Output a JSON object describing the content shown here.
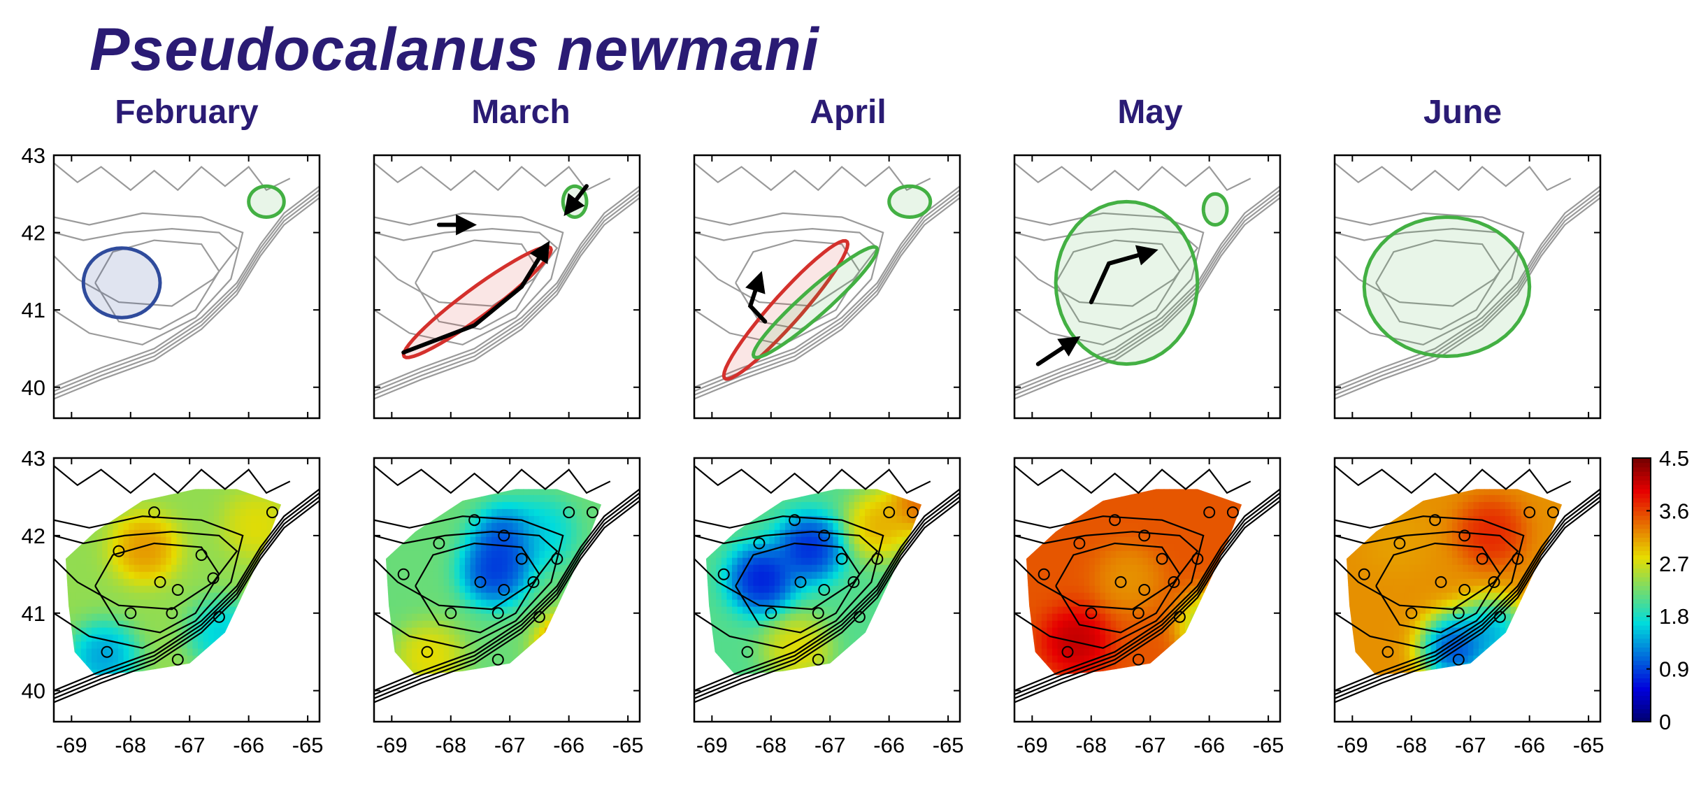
{
  "figure": {
    "title": "Pseudocalanus newmani",
    "panel_titles": [
      "February",
      "March",
      "April",
      "May",
      "June"
    ]
  },
  "colors": {
    "title": "#2a1b74",
    "bathymetry_gray": "#9a9a9a",
    "bathymetry_black": "#000000",
    "winter_patch": "#2f4b9c",
    "spring_patch": "#d4302c",
    "summer_patch": "#43b043",
    "arrow": "#000000"
  },
  "chart_data": {
    "type": "heatmap",
    "title": "Pseudocalanus newmani",
    "xlabel": "",
    "ylabel": "",
    "x_ticks": [
      -69,
      -68,
      -67,
      -66,
      -65
    ],
    "y_ticks": [
      40,
      41,
      42,
      43
    ],
    "xlim": [
      -69.3,
      -64.8
    ],
    "ylim": [
      39.6,
      43
    ],
    "months": [
      "February",
      "March",
      "April",
      "May",
      "June"
    ],
    "colorbar": {
      "ticks": [
        0,
        0.9,
        1.8,
        2.7,
        3.6,
        4.5
      ],
      "tick_labels": [
        "0",
        "0.9",
        "1.8",
        "2.7",
        "3.6",
        "4.5"
      ],
      "range": [
        0,
        4.5
      ],
      "colormap": "jet"
    },
    "schematic_rows": [
      {
        "month": "February",
        "patches": [
          {
            "color": "blue",
            "lon_range": [
              -68.8,
              -67.5
            ],
            "lat_range": [
              40.9,
              41.8
            ]
          },
          {
            "color": "green",
            "lon_range": [
              -66.0,
              -65.4
            ],
            "lat_range": [
              42.2,
              42.6
            ]
          }
        ]
      },
      {
        "month": "March",
        "patches": [
          {
            "color": "red",
            "lon_range": [
              -68.8,
              -66.3
            ],
            "lat_range": [
              40.3,
              41.9
            ]
          },
          {
            "color": "green",
            "lon_range": [
              -66.1,
              -65.7
            ],
            "lat_range": [
              42.2,
              42.6
            ]
          }
        ]
      },
      {
        "month": "April",
        "patches": [
          {
            "color": "red",
            "lon_range": [
              -68.8,
              -66.7
            ],
            "lat_range": [
              40.0,
              42.0
            ]
          },
          {
            "color": "green",
            "lon_range": [
              -68.3,
              -66.2
            ],
            "lat_range": [
              40.3,
              41.9
            ]
          },
          {
            "color": "green",
            "lon_range": [
              -66.0,
              -65.3
            ],
            "lat_range": [
              42.2,
              42.6
            ]
          }
        ]
      },
      {
        "month": "May",
        "patches": [
          {
            "color": "green",
            "lon_range": [
              -68.6,
              -66.2
            ],
            "lat_range": [
              40.3,
              42.4
            ]
          },
          {
            "color": "green",
            "lon_range": [
              -66.1,
              -65.7
            ],
            "lat_range": [
              42.1,
              42.5
            ]
          }
        ]
      },
      {
        "month": "June",
        "patches": [
          {
            "color": "green",
            "lon_range": [
              -68.8,
              -66.0
            ],
            "lat_range": [
              40.4,
              42.2
            ]
          }
        ]
      }
    ],
    "heatmap_rows": [
      {
        "month": "February",
        "stations": [
          [
            -67.6,
            42.3
          ],
          [
            -68.2,
            41.8
          ],
          [
            -67.5,
            41.4
          ],
          [
            -67.2,
            41.3
          ],
          [
            -66.6,
            41.45
          ],
          [
            -66.8,
            41.75
          ],
          [
            -68.0,
            41.0
          ],
          [
            -67.3,
            41.0
          ],
          [
            -66.5,
            40.95
          ],
          [
            -68.4,
            40.5
          ],
          [
            -67.2,
            40.4
          ],
          [
            -65.6,
            42.3
          ]
        ]
      },
      {
        "month": "March",
        "stations": [
          [
            -68.2,
            41.9
          ],
          [
            -67.6,
            42.2
          ],
          [
            -67.1,
            42.0
          ],
          [
            -67.5,
            41.4
          ],
          [
            -67.1,
            41.3
          ],
          [
            -66.6,
            41.4
          ],
          [
            -68.0,
            41.0
          ],
          [
            -67.2,
            41.0
          ],
          [
            -66.5,
            40.95
          ],
          [
            -68.4,
            40.5
          ],
          [
            -67.2,
            40.4
          ],
          [
            -65.6,
            42.3
          ],
          [
            -66.0,
            42.3
          ],
          [
            -66.8,
            41.7
          ],
          [
            -66.2,
            41.7
          ],
          [
            -68.8,
            41.5
          ]
        ]
      },
      {
        "month": "April",
        "stations": [
          [
            -68.2,
            41.9
          ],
          [
            -67.6,
            42.2
          ],
          [
            -67.1,
            42.0
          ],
          [
            -67.5,
            41.4
          ],
          [
            -67.1,
            41.3
          ],
          [
            -66.6,
            41.4
          ],
          [
            -68.0,
            41.0
          ],
          [
            -67.2,
            41.0
          ],
          [
            -66.5,
            40.95
          ],
          [
            -68.4,
            40.5
          ],
          [
            -67.2,
            40.4
          ],
          [
            -65.6,
            42.3
          ],
          [
            -66.0,
            42.3
          ],
          [
            -66.8,
            41.7
          ],
          [
            -66.2,
            41.7
          ],
          [
            -68.8,
            41.5
          ]
        ]
      },
      {
        "month": "May",
        "stations": [
          [
            -68.2,
            41.9
          ],
          [
            -67.6,
            42.2
          ],
          [
            -67.1,
            42.0
          ],
          [
            -67.5,
            41.4
          ],
          [
            -67.1,
            41.3
          ],
          [
            -66.6,
            41.4
          ],
          [
            -68.0,
            41.0
          ],
          [
            -67.2,
            41.0
          ],
          [
            -66.5,
            40.95
          ],
          [
            -68.4,
            40.5
          ],
          [
            -67.2,
            40.4
          ],
          [
            -65.6,
            42.3
          ],
          [
            -66.0,
            42.3
          ],
          [
            -66.8,
            41.7
          ],
          [
            -66.2,
            41.7
          ],
          [
            -68.8,
            41.5
          ]
        ]
      },
      {
        "month": "June",
        "stations": [
          [
            -68.2,
            41.9
          ],
          [
            -67.6,
            42.2
          ],
          [
            -67.1,
            42.0
          ],
          [
            -67.5,
            41.4
          ],
          [
            -67.1,
            41.3
          ],
          [
            -66.6,
            41.4
          ],
          [
            -68.0,
            41.0
          ],
          [
            -67.2,
            41.0
          ],
          [
            -66.5,
            40.95
          ],
          [
            -68.4,
            40.5
          ],
          [
            -67.2,
            40.4
          ],
          [
            -65.6,
            42.3
          ],
          [
            -66.0,
            42.3
          ],
          [
            -66.8,
            41.7
          ],
          [
            -66.2,
            41.7
          ],
          [
            -68.8,
            41.5
          ]
        ]
      }
    ],
    "heatmap_fields": [
      {
        "month": "February",
        "background": 2.4,
        "blobs": [
          [
            -67.8,
            41.8,
            3.4
          ],
          [
            -66.5,
            40.7,
            1.4
          ],
          [
            -68.5,
            40.4,
            1.1
          ],
          [
            -65.9,
            42.1,
            2.9
          ]
        ]
      },
      {
        "month": "March",
        "background": 2.2,
        "blobs": [
          [
            -67.3,
            41.5,
            0.5
          ],
          [
            -67.1,
            41.9,
            0.6
          ],
          [
            -66.0,
            40.5,
            4.2
          ],
          [
            -66.5,
            42.0,
            1.5
          ],
          [
            -68.4,
            40.4,
            3.0
          ]
        ]
      },
      {
        "month": "April",
        "background": 2.1,
        "blobs": [
          [
            -68.2,
            41.4,
            0.3
          ],
          [
            -67.4,
            41.8,
            0.4
          ],
          [
            -66.2,
            42.1,
            3.3
          ],
          [
            -65.5,
            42.4,
            3.8
          ],
          [
            -67.6,
            40.5,
            3.0
          ]
        ]
      },
      {
        "month": "May",
        "background": 3.5,
        "blobs": [
          [
            -68.3,
            40.6,
            4.3
          ],
          [
            -67.4,
            41.4,
            3.1
          ],
          [
            -66.0,
            40.8,
            2.1
          ],
          [
            -66.6,
            42.1,
            3.5
          ]
        ]
      },
      {
        "month": "June",
        "background": 3.2,
        "blobs": [
          [
            -66.7,
            42.0,
            3.9
          ],
          [
            -67.3,
            40.5,
            0.3
          ],
          [
            -66.7,
            40.7,
            1.0
          ],
          [
            -68.3,
            41.9,
            3.1
          ]
        ]
      }
    ]
  }
}
